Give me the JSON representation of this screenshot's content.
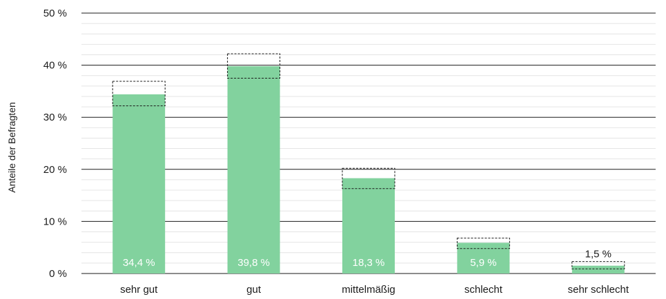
{
  "chart_data": {
    "type": "bar",
    "categories": [
      "sehr gut",
      "gut",
      "mittelmäßig",
      "schlecht",
      "sehr schlecht"
    ],
    "values": [
      34.4,
      39.8,
      18.3,
      5.9,
      1.5
    ],
    "value_labels": [
      "34,4 %",
      "39,8 %",
      "18,3 %",
      "5,9 %",
      "1,5 %"
    ],
    "confidence_intervals": [
      [
        32.2,
        36.9
      ],
      [
        37.5,
        42.2
      ],
      [
        16.3,
        20.2
      ],
      [
        4.8,
        6.8
      ],
      [
        0.9,
        2.3
      ]
    ],
    "ylabel": "Anteile der Befragten",
    "ylim": [
      0,
      50
    ],
    "yticks": [
      0,
      10,
      20,
      30,
      40,
      50
    ],
    "ytick_labels": [
      "0 %",
      "10 %",
      "20 %",
      "30 %",
      "40 %",
      "50 %"
    ],
    "minor_grid_step": 2,
    "grid": true,
    "bar_color": "#82d29e",
    "inside_label_color": "#ffffff",
    "outside_label_color": "#1a1a1a"
  }
}
